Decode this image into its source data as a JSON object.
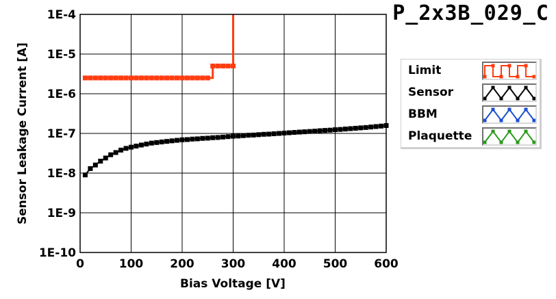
{
  "title": "P_2x3B_029_C",
  "colors": {
    "limit": "#ff3c10",
    "sensor": "#000000",
    "bbm": "#1a4fd0",
    "plaquette": "#2a9a1a",
    "grid": "#000000"
  },
  "legend": [
    {
      "label": "Limit",
      "pattern": "square",
      "color": "#ff3c10"
    },
    {
      "label": "Sensor",
      "pattern": "zigzag",
      "color": "#000000"
    },
    {
      "label": "BBM",
      "pattern": "zigzag",
      "color": "#1a4fd0"
    },
    {
      "label": "Plaquette",
      "pattern": "zigzag",
      "color": "#2a9a1a"
    }
  ],
  "chart_data": {
    "type": "line",
    "title": "P_2x3B_029_C",
    "xlabel": "Bias Voltage [V]",
    "ylabel": "Sensor Leakage Current [A]",
    "xlim": [
      0,
      600
    ],
    "ylim": [
      1e-10,
      0.0001
    ],
    "yscale": "log",
    "grid": true,
    "legend_position": "right",
    "xticks": [
      0,
      100,
      200,
      300,
      400,
      500,
      600
    ],
    "xtick_labels": [
      "0",
      "100",
      "200",
      "300",
      "400",
      "500",
      "600"
    ],
    "yticks": [
      1e-10,
      1e-09,
      1e-08,
      1e-07,
      1e-06,
      1e-05,
      0.0001
    ],
    "ytick_labels": [
      "1E-10",
      "1E-9",
      "1E-8",
      "1E-7",
      "1E-6",
      "1E-5",
      "1E-4"
    ],
    "series": [
      {
        "name": "Limit",
        "style": "step",
        "marker": "square",
        "x": [
          10,
          20,
          30,
          40,
          50,
          60,
          70,
          80,
          90,
          100,
          110,
          120,
          130,
          140,
          150,
          160,
          170,
          180,
          190,
          200,
          210,
          220,
          230,
          240,
          250,
          260,
          270,
          280,
          290,
          300
        ],
        "y": [
          2.5e-06,
          2.5e-06,
          2.5e-06,
          2.5e-06,
          2.5e-06,
          2.5e-06,
          2.5e-06,
          2.5e-06,
          2.5e-06,
          2.5e-06,
          2.5e-06,
          2.5e-06,
          2.5e-06,
          2.5e-06,
          2.5e-06,
          2.5e-06,
          2.5e-06,
          2.5e-06,
          2.5e-06,
          2.5e-06,
          2.5e-06,
          2.5e-06,
          2.5e-06,
          2.5e-06,
          2.5e-06,
          5e-06,
          5e-06,
          5e-06,
          5e-06,
          5e-06
        ],
        "step_end": {
          "x": 300,
          "y": 0.0001
        }
      },
      {
        "name": "Sensor",
        "style": "line",
        "marker": "square",
        "x": [
          10,
          20,
          30,
          40,
          50,
          60,
          70,
          80,
          90,
          100,
          110,
          120,
          130,
          140,
          150,
          160,
          170,
          180,
          190,
          200,
          210,
          220,
          230,
          240,
          250,
          260,
          270,
          280,
          290,
          300,
          310,
          320,
          330,
          340,
          350,
          360,
          370,
          380,
          390,
          400,
          410,
          420,
          430,
          440,
          450,
          460,
          470,
          480,
          490,
          500,
          510,
          520,
          530,
          540,
          550,
          560,
          570,
          580,
          590,
          600
        ],
        "y": [
          9e-09,
          1.3e-08,
          1.6e-08,
          2e-08,
          2.4e-08,
          2.9e-08,
          3.3e-08,
          3.8e-08,
          4.2e-08,
          4.5e-08,
          4.8e-08,
          5.1e-08,
          5.4e-08,
          5.7e-08,
          5.9e-08,
          6.1e-08,
          6.3e-08,
          6.5e-08,
          6.7e-08,
          6.9e-08,
          7e-08,
          7.2e-08,
          7.3e-08,
          7.5e-08,
          7.6e-08,
          7.8e-08,
          7.9e-08,
          8.1e-08,
          8.3e-08,
          8.5e-08,
          8.6e-08,
          8.8e-08,
          9e-08,
          9.1e-08,
          9.3e-08,
          9.5e-08,
          9.6e-08,
          9.8e-08,
          1e-07,
          1.02e-07,
          1.04e-07,
          1.06e-07,
          1.08e-07,
          1.1e-07,
          1.12e-07,
          1.14e-07,
          1.17e-07,
          1.19e-07,
          1.21e-07,
          1.24e-07,
          1.26e-07,
          1.29e-07,
          1.32e-07,
          1.35e-07,
          1.38e-07,
          1.41e-07,
          1.45e-07,
          1.49e-07,
          1.53e-07,
          1.58e-07
        ]
      }
    ]
  }
}
